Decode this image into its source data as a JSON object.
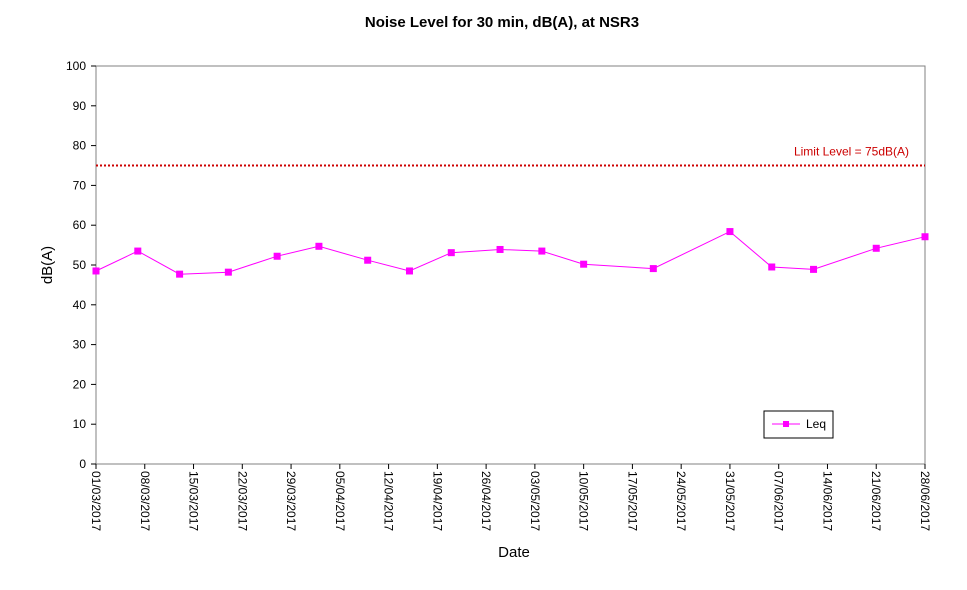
{
  "chart_data": {
    "type": "line",
    "title": "Noise Level for 30 min, dB(A), at NSR3",
    "xlabel": "Date",
    "ylabel": "dB(A)",
    "ylim": [
      0,
      100
    ],
    "yticks": [
      "0",
      "10",
      "20",
      "30",
      "40",
      "50",
      "60",
      "70",
      "80",
      "90",
      "100"
    ],
    "xlim": [
      "2017-03-01",
      "2017-06-28"
    ],
    "xticks": [
      "01/03/2017",
      "08/03/2017",
      "15/03/2017",
      "22/03/2017",
      "29/03/2017",
      "05/04/2017",
      "12/04/2017",
      "19/04/2017",
      "26/04/2017",
      "03/05/2017",
      "10/05/2017",
      "17/05/2017",
      "24/05/2017",
      "31/05/2017",
      "07/06/2017",
      "14/06/2017",
      "21/06/2017",
      "28/06/2017"
    ],
    "grid": false,
    "legend_position": "bottom-right",
    "series": [
      {
        "name": "Leq",
        "color": "#ff00ff",
        "marker": "square",
        "x": [
          "2017-03-01",
          "2017-03-07",
          "2017-03-13",
          "2017-03-20",
          "2017-03-27",
          "2017-04-02",
          "2017-04-09",
          "2017-04-15",
          "2017-04-21",
          "2017-04-28",
          "2017-05-04",
          "2017-05-10",
          "2017-05-20",
          "2017-05-31",
          "2017-06-06",
          "2017-06-12",
          "2017-06-21",
          "2017-06-28"
        ],
        "values": [
          48.5,
          53.5,
          47.7,
          48.2,
          52.2,
          54.7,
          51.2,
          48.5,
          53.1,
          53.9,
          53.5,
          50.2,
          49.1,
          58.4,
          49.5,
          48.9,
          54.2,
          57.1
        ]
      }
    ],
    "reference_line": {
      "label": "Limit Level  = 75dB(A)",
      "value": 75,
      "color": "#cc0000",
      "style": "dotted"
    }
  }
}
